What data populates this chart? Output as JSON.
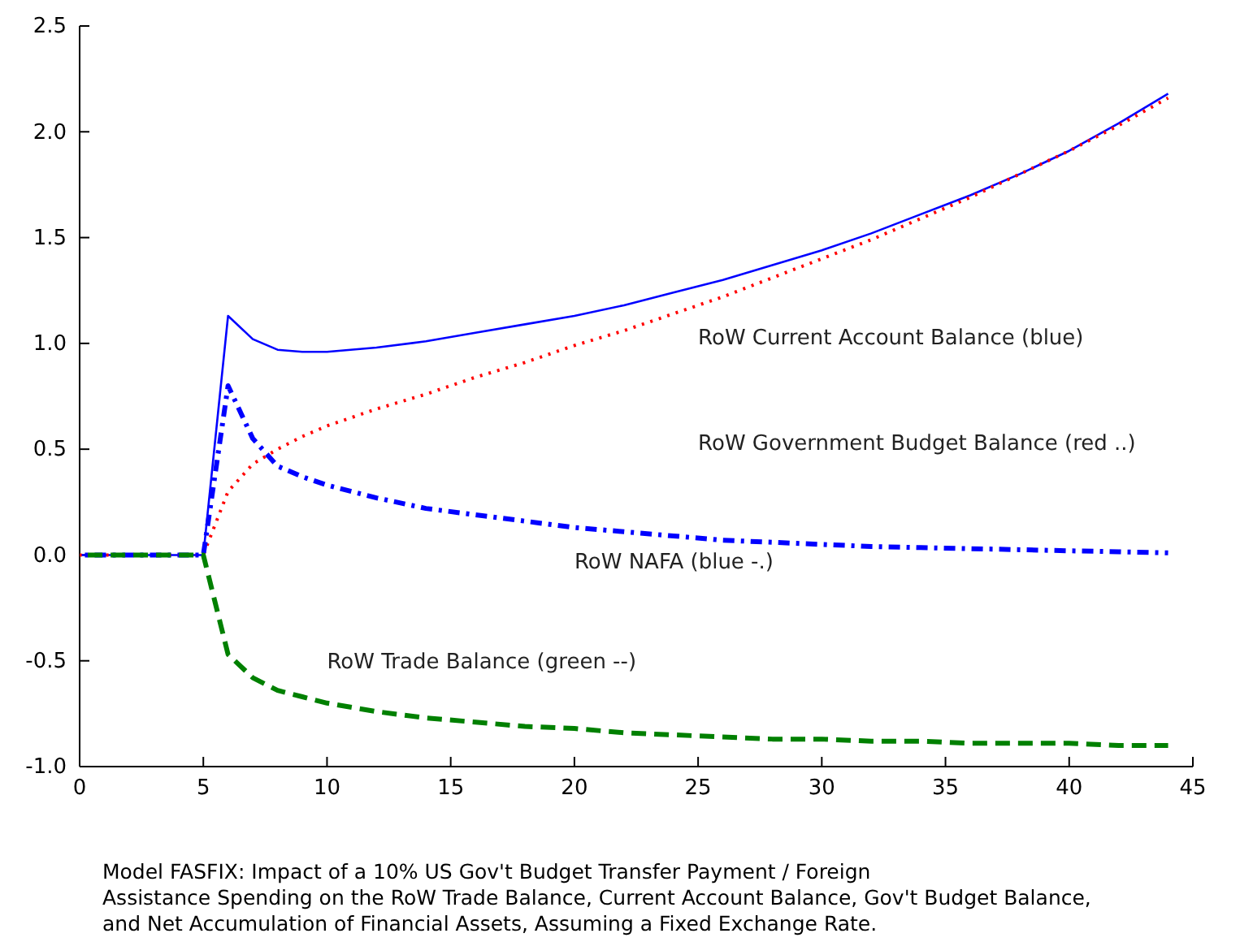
{
  "chart_data": {
    "type": "line",
    "x": [
      0,
      1,
      2,
      3,
      4,
      5,
      6,
      7,
      8,
      9,
      10,
      12,
      14,
      16,
      18,
      20,
      22,
      24,
      26,
      28,
      30,
      32,
      34,
      36,
      38,
      40,
      42,
      44
    ],
    "series": [
      {
        "color": "#0000ff",
        "line_style": "solid",
        "values": [
          0,
          0,
          0,
          0,
          0,
          0,
          1.13,
          1.02,
          0.97,
          0.96,
          0.96,
          0.98,
          1.01,
          1.05,
          1.09,
          1.13,
          1.18,
          1.24,
          1.3,
          1.37,
          1.44,
          1.52,
          1.61,
          1.7,
          1.8,
          1.91,
          2.04,
          2.18
        ]
      },
      {
        "color": "#ff0000",
        "line_style": "dotted",
        "values": [
          0,
          0,
          0,
          0,
          0,
          0,
          0.3,
          0.43,
          0.5,
          0.56,
          0.61,
          0.69,
          0.76,
          0.84,
          0.91,
          0.99,
          1.06,
          1.14,
          1.22,
          1.31,
          1.4,
          1.49,
          1.59,
          1.69,
          1.8,
          1.91,
          2.03,
          2.16
        ]
      },
      {
        "color": "#0000ff",
        "line_style": "dashdot",
        "values": [
          0,
          0,
          0,
          0,
          0,
          0,
          0.8,
          0.55,
          0.42,
          0.37,
          0.33,
          0.27,
          0.22,
          0.19,
          0.16,
          0.13,
          0.11,
          0.09,
          0.07,
          0.06,
          0.05,
          0.04,
          0.035,
          0.03,
          0.025,
          0.02,
          0.015,
          0.01
        ]
      },
      {
        "color": "#008000",
        "line_style": "dashed",
        "values": [
          0,
          0,
          0,
          0,
          0,
          0,
          -0.47,
          -0.58,
          -0.64,
          -0.67,
          -0.7,
          -0.74,
          -0.77,
          -0.79,
          -0.81,
          -0.82,
          -0.84,
          -0.85,
          -0.86,
          -0.87,
          -0.87,
          -0.88,
          -0.88,
          -0.89,
          -0.89,
          -0.89,
          -0.9,
          -0.9
        ]
      }
    ],
    "xlim": [
      0,
      45
    ],
    "xticks": [
      0,
      5,
      10,
      15,
      20,
      25,
      30,
      35,
      40,
      45
    ],
    "ylim": [
      -1,
      2.5
    ],
    "yticks": [
      {
        "value": -1,
        "label": "-1.0"
      },
      {
        "value": -0.5,
        "label": "-0.5"
      },
      {
        "value": 0,
        "label": "0.0"
      },
      {
        "value": 0.5,
        "label": "0.5"
      },
      {
        "value": 1,
        "label": "1.0"
      },
      {
        "value": 1.5,
        "label": "1.5"
      },
      {
        "value": 2,
        "label": "2.0"
      },
      {
        "value": 2.5,
        "label": "2.5"
      }
    ],
    "grid": false,
    "marker": "none",
    "annotations": [
      "RoW Current Account Balance (blue)",
      "RoW Government Budget Balance (red ..)",
      "RoW NAFA (blue -.)",
      "RoW Trade Balance (green --)",
      "Model FASFIX: Impact of a 10% US Gov't Budget Transfer Payment / Foreign",
      "Assistance Spending on the RoW Trade Balance, Current Account Balance, Gov't Budget Balance,",
      "and Net Accumulation of Financial Assets, Assuming a Fixed Exchange Rate."
    ]
  }
}
